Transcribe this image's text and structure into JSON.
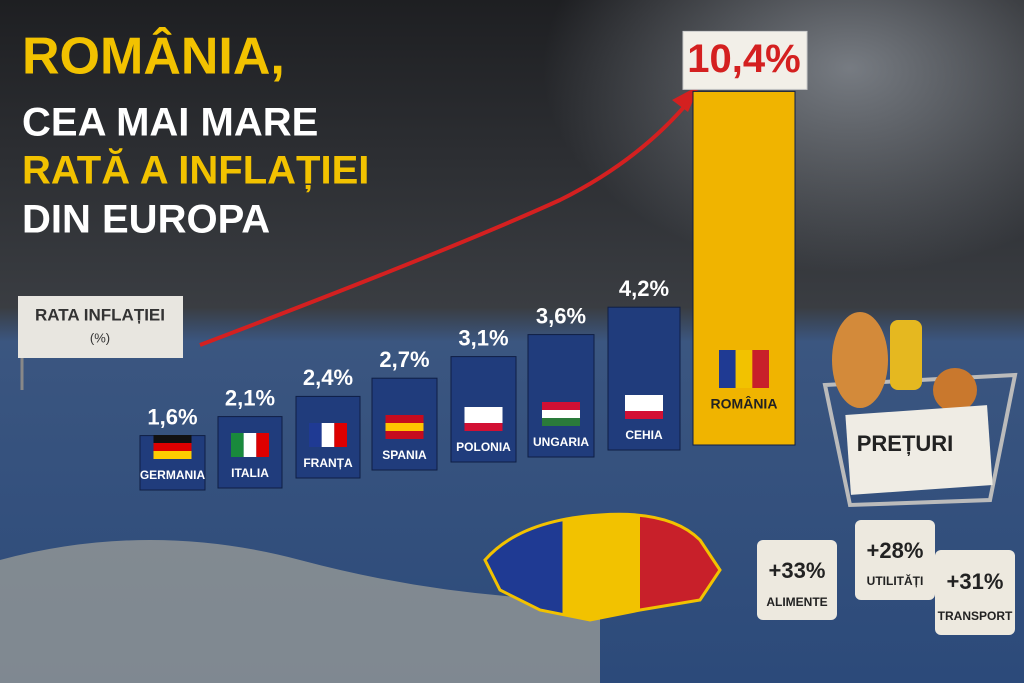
{
  "chart_data": {
    "type": "bar",
    "title_lines": [
      "ROMÂNIA,",
      "CEA MAI MARE",
      "RATĂ A INFLAȚIEI",
      "DIN EUROPA"
    ],
    "axis_sign": [
      "RATA INFLAȚIEI",
      "(%)"
    ],
    "categories": [
      "GERMANIA",
      "ITALIA",
      "FRANȚA",
      "SPANIA",
      "POLONIA",
      "UNGARIA",
      "CEHIA",
      "ROMÂNIA"
    ],
    "values": [
      1.6,
      2.1,
      2.4,
      2.7,
      3.1,
      3.6,
      4.2,
      10.4
    ],
    "value_labels": [
      "1,6%",
      "2,1%",
      "2,4%",
      "2,7%",
      "3,1%",
      "3,6%",
      "4,2%",
      "10,4%"
    ],
    "colors": [
      "#203c7c",
      "#203c7c",
      "#203c7c",
      "#203c7c",
      "#203c7c",
      "#203c7c",
      "#203c7c",
      "#f0b400"
    ]
  },
  "basket": {
    "sign": "PREȚURI",
    "tags": [
      {
        "value": "+33%",
        "label": "ALIMENTE"
      },
      {
        "value": "+28%",
        "label": "UTILITĂȚI"
      },
      {
        "value": "+31%",
        "label": "TRANSPORT"
      }
    ]
  }
}
